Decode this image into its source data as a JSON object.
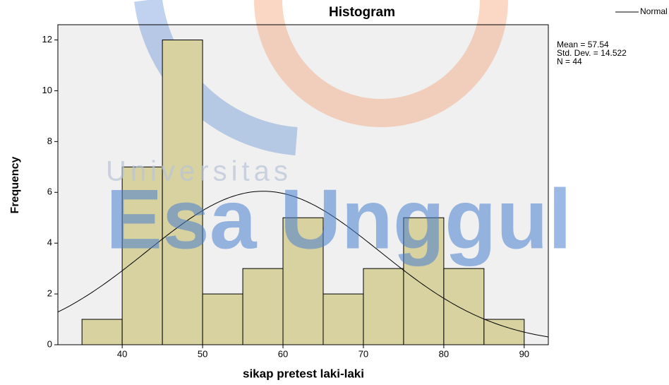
{
  "chart_data": {
    "type": "histogram",
    "title": "Histogram",
    "xlabel": "sikap pretest laki-laki",
    "ylabel": "Frequency",
    "bins": [
      35,
      40,
      45,
      50,
      55,
      60,
      65,
      70,
      75,
      80,
      85,
      90
    ],
    "counts": [
      1,
      7,
      12,
      2,
      3,
      5,
      2,
      3,
      5,
      3,
      1
    ],
    "color": "#d7d29f",
    "xlim": [
      32,
      93
    ],
    "xticks": [
      40,
      50,
      60,
      70,
      80,
      90
    ],
    "ylim": [
      0,
      12.6
    ],
    "yticks": [
      0,
      2,
      4,
      6,
      8,
      10,
      12
    ],
    "normal_curve": {
      "name": "Normal",
      "color": "#000000"
    },
    "stats": {
      "mean": {
        "value": 57.54,
        "label": "Mean = 57.54"
      },
      "std_dev": {
        "value": 14.522,
        "label": "Std. Dev. = 14.522"
      },
      "n": {
        "value": 44,
        "label": "N = 44"
      }
    },
    "watermark": [
      "Universitas",
      "Esa Unggul"
    ]
  }
}
